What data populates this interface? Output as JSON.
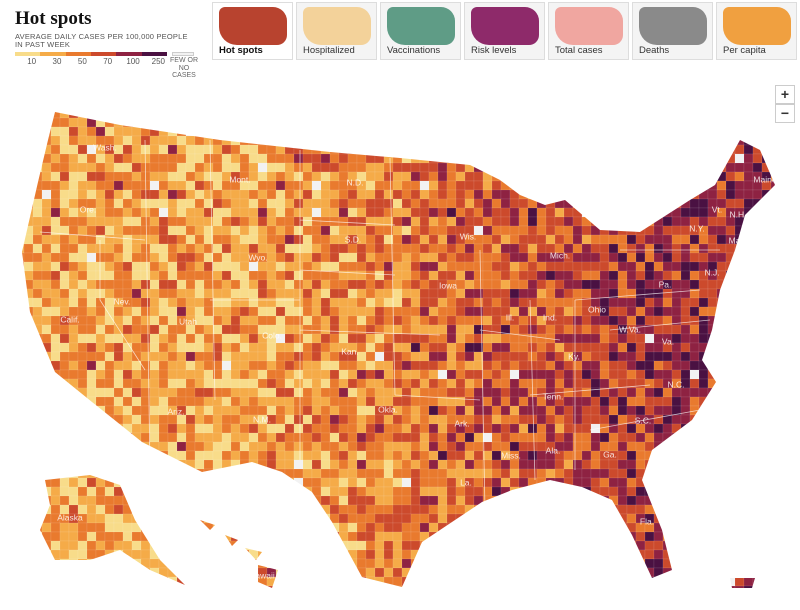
{
  "header": {
    "title": "Hot spots",
    "subtitle": "AVERAGE DAILY CASES PER 100,000 PEOPLE IN PAST WEEK"
  },
  "legend": {
    "ticks": [
      10,
      30,
      50,
      70,
      100,
      250
    ],
    "colors": [
      "#f8dc8a",
      "#f5ab48",
      "#e97a2e",
      "#cc4a2c",
      "#8e2242",
      "#4a1142"
    ],
    "no_cases_label": "FEW OR NO CASES",
    "no_cases_color": "#f2f2f2"
  },
  "tabs": [
    {
      "label": "Hot spots",
      "color": "#b8432f",
      "active": true
    },
    {
      "label": "Hospitalized",
      "color": "#f3d29a",
      "active": false
    },
    {
      "label": "Vaccinations",
      "color": "#5f9c86",
      "active": false
    },
    {
      "label": "Risk levels",
      "color": "#8e2a6a",
      "active": false
    },
    {
      "label": "Total cases",
      "color": "#f0a6a0",
      "active": false
    },
    {
      "label": "Deaths",
      "color": "#8a8a8a",
      "active": false
    },
    {
      "label": "Per capita",
      "color": "#f0a040",
      "active": false
    }
  ],
  "zoom": {
    "in": "+",
    "out": "−"
  },
  "map": {
    "labels": [
      "Wash.",
      "Ore.",
      "Calif.",
      "Nev.",
      "Utah",
      "Ariz.",
      "Mont.",
      "Wyo.",
      "Colo.",
      "N.M.",
      "N.D.",
      "S.D.",
      "Kan.",
      "Okla.",
      "Wis.",
      "Iowa",
      "Ill.",
      "Ind.",
      "Ohio",
      "Mich.",
      "Ky.",
      "Tenn.",
      "Miss.",
      "Ala.",
      "Ga.",
      "Ark.",
      "La.",
      "Fla.",
      "S.C.",
      "N.C.",
      "Va.",
      "W.Va.",
      "Pa.",
      "N.Y.",
      "Vt.",
      "N.H.",
      "Maine",
      "Mass.",
      "N.J.",
      "Alaska",
      "Hawaii"
    ]
  }
}
